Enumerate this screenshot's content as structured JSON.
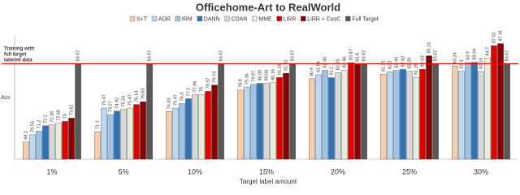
{
  "chart_data": {
    "type": "bar",
    "title": "Officehome-Art  to RealWorld",
    "x_label": "Target label amount",
    "y_label": "Acc",
    "annotation": [
      "Training with",
      "full target",
      "labeled  data"
    ],
    "reference_line": {
      "value": 83.67,
      "color": "#e00000"
    },
    "categories": [
      "1%",
      "5%",
      "10%",
      "15%",
      "20%",
      "25%",
      "30%"
    ],
    "ylim": [
      66,
      89
    ],
    "series": [
      {
        "name": "S+T",
        "color": "#f8cbad",
        "values": [
          69.2,
          71.1,
          74.83,
          78.8,
          80.9,
          81.75,
          83.24
        ]
      },
      {
        "name": "ADR",
        "color": "#bdd7ee",
        "values": [
          70.55,
          75.47,
          75.47,
          79.36,
          81.64,
          82.2,
          82.3
        ]
      },
      {
        "name": "IRM",
        "color": "#9dc3e6",
        "values": [
          71.2,
          74.27,
          76.3,
          79.87,
          82.45,
          82.43,
          83.9
        ]
      },
      {
        "name": "DANN",
        "color": "#2e75b6",
        "values": [
          72.2,
          74.92,
          77.2,
          80.05,
          81.1,
          82.62,
          83.94
        ]
      },
      {
        "name": "CDAN",
        "color": "#d9d9d9",
        "values": [
          72.38,
          75.24,
          77.96,
          80.06,
          82.05,
          82.29,
          82.24
        ]
      },
      {
        "name": "MME",
        "color": "#e2efda",
        "values": [
          72.66,
          75.47,
          78.0,
          80.16,
          82.46,
          81.16,
          84.7
        ]
      },
      {
        "name": "LiRR",
        "color": "#e00000",
        "values": [
          73.0,
          76.14,
          78.57,
          81.16,
          83.87,
          82.63,
          87.02
        ]
      },
      {
        "name": "LiRR + CosC",
        "color": "#8b0000",
        "values": [
          73.62,
          76.63,
          79.74,
          81.92,
          83.6,
          85.15,
          87.41
        ]
      },
      {
        "name": "Full Target",
        "color": "#595959",
        "values": [
          83.67,
          83.67,
          83.67,
          83.67,
          83.67,
          83.67,
          83.67
        ]
      }
    ]
  }
}
